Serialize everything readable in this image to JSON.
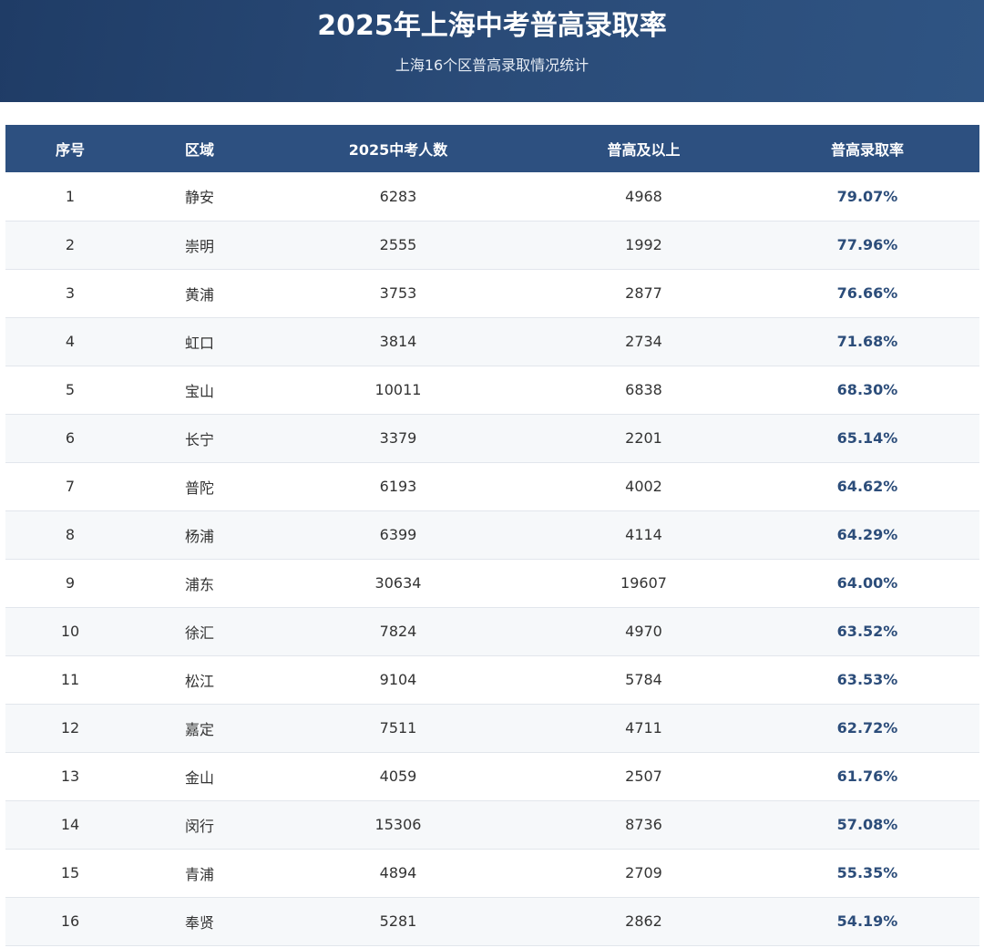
{
  "header": {
    "title": "2025年上海中考普高录取率",
    "subtitle": "上海16个区普高录取情况统计"
  },
  "colors": {
    "header_bg": "#2a4b78",
    "table_header_bg": "#2d5080",
    "rate_text": "#2c4d7a",
    "row_alt_bg": "#f6f8fa"
  },
  "chart_data": {
    "type": "table",
    "title": "2025年上海中考普高录取率",
    "subtitle": "上海16个区普高录取情况统计",
    "columns": [
      "序号",
      "区域",
      "2025中考人数",
      "普高及以上",
      "普高录取率"
    ],
    "rows": [
      [
        "1",
        "静安",
        "6283",
        "4968",
        "79.07%"
      ],
      [
        "2",
        "崇明",
        "2555",
        "1992",
        "77.96%"
      ],
      [
        "3",
        "黄浦",
        "3753",
        "2877",
        "76.66%"
      ],
      [
        "4",
        "虹口",
        "3814",
        "2734",
        "71.68%"
      ],
      [
        "5",
        "宝山",
        "10011",
        "6838",
        "68.30%"
      ],
      [
        "6",
        "长宁",
        "3379",
        "2201",
        "65.14%"
      ],
      [
        "7",
        "普陀",
        "6193",
        "4002",
        "64.62%"
      ],
      [
        "8",
        "杨浦",
        "6399",
        "4114",
        "64.29%"
      ],
      [
        "9",
        "浦东",
        "30634",
        "19607",
        "64.00%"
      ],
      [
        "10",
        "徐汇",
        "7824",
        "4970",
        "63.52%"
      ],
      [
        "11",
        "松江",
        "9104",
        "5784",
        "63.53%"
      ],
      [
        "12",
        "嘉定",
        "7511",
        "4711",
        "62.72%"
      ],
      [
        "13",
        "金山",
        "4059",
        "2507",
        "61.76%"
      ],
      [
        "14",
        "闵行",
        "15306",
        "8736",
        "57.08%"
      ],
      [
        "15",
        "青浦",
        "4894",
        "2709",
        "55.35%"
      ],
      [
        "16",
        "奉贤",
        "5281",
        "2862",
        "54.19%"
      ]
    ]
  }
}
